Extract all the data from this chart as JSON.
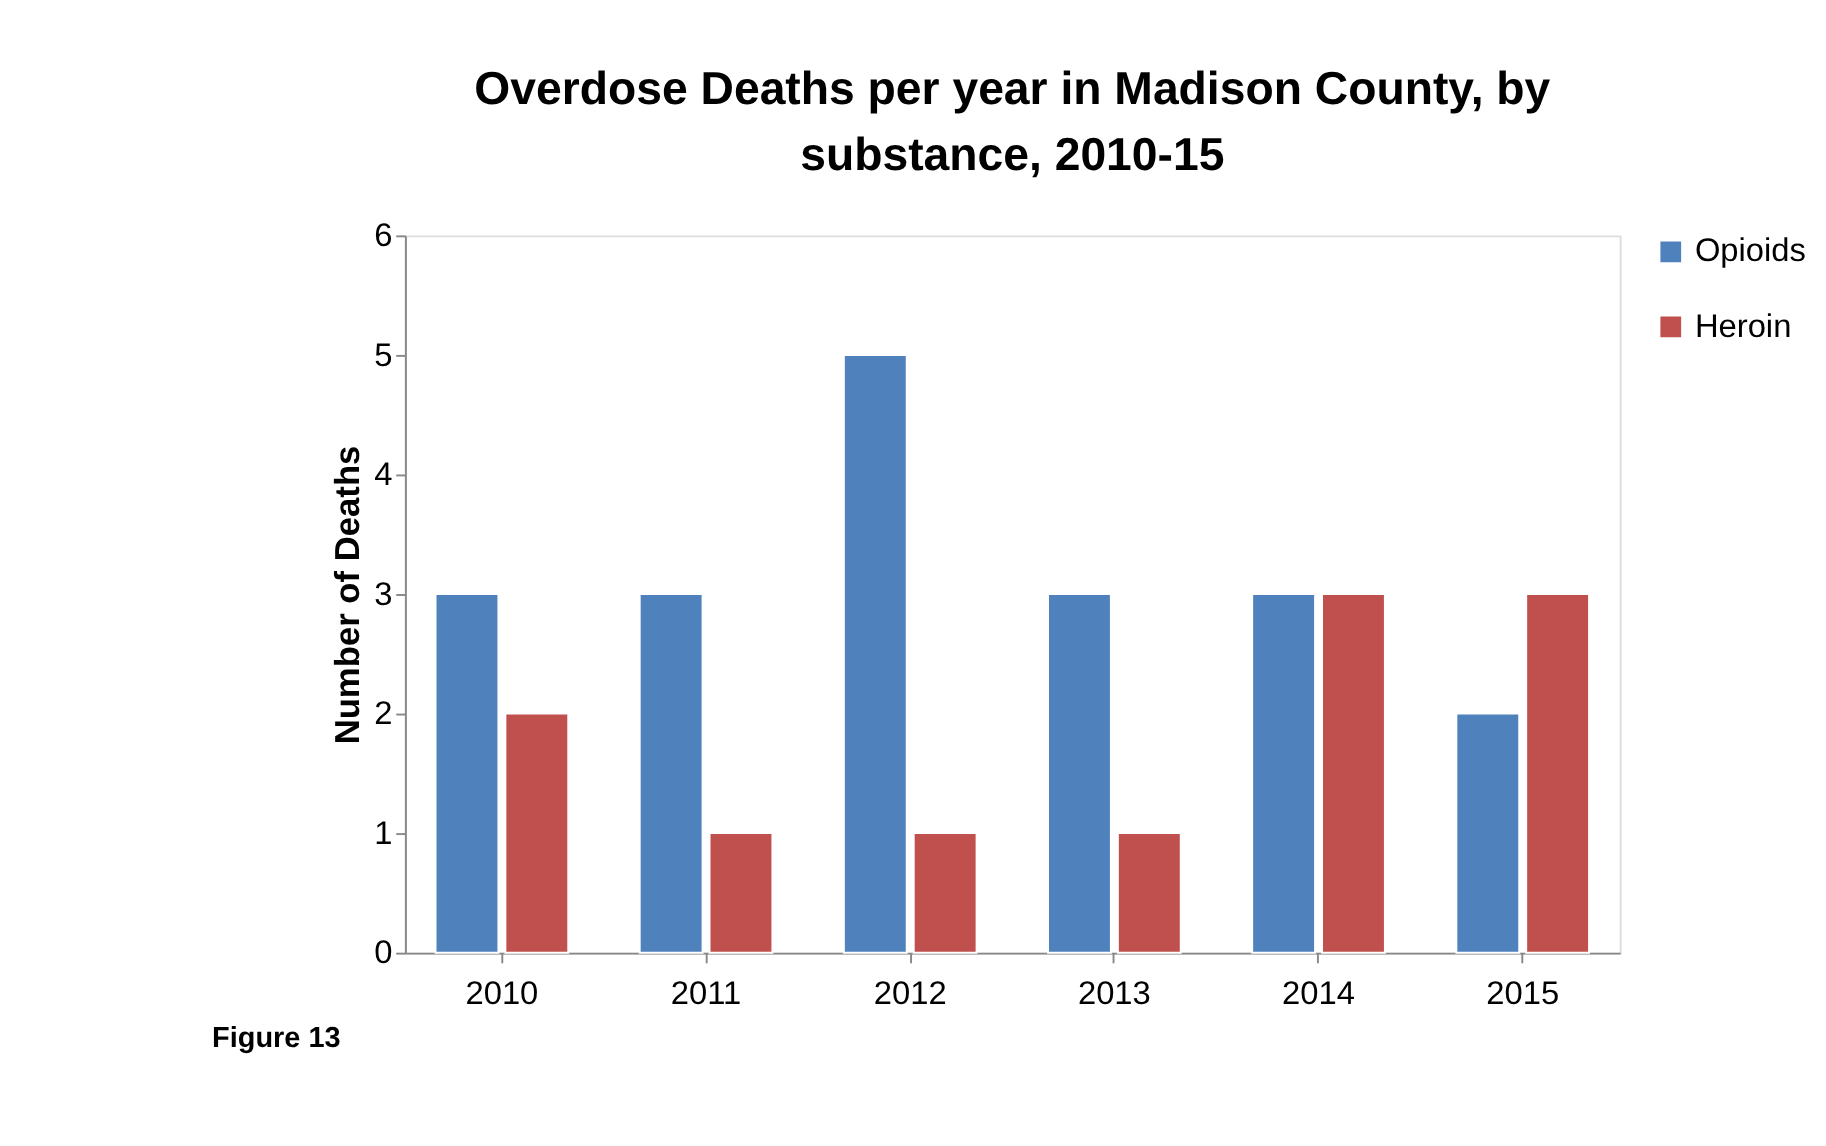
{
  "chart_data": {
    "type": "bar",
    "title": "Overdose Deaths per year in Madison County, by substance, 2010-15",
    "ylabel": "Number of Deaths",
    "categories": [
      "2010",
      "2011",
      "2012",
      "2013",
      "2014",
      "2015"
    ],
    "series": [
      {
        "name": "Opioids",
        "color": "#4f81bd",
        "values": [
          3,
          3,
          5,
          3,
          3,
          2
        ]
      },
      {
        "name": "Heroin",
        "color": "#c0504d",
        "values": [
          2,
          1,
          1,
          1,
          3,
          3
        ]
      }
    ],
    "ylim": [
      0,
      6
    ],
    "yticks": [
      0,
      1,
      2,
      3,
      4,
      5,
      6
    ],
    "grid": false,
    "legend": "right",
    "annotations": [
      "Figure 13"
    ]
  }
}
